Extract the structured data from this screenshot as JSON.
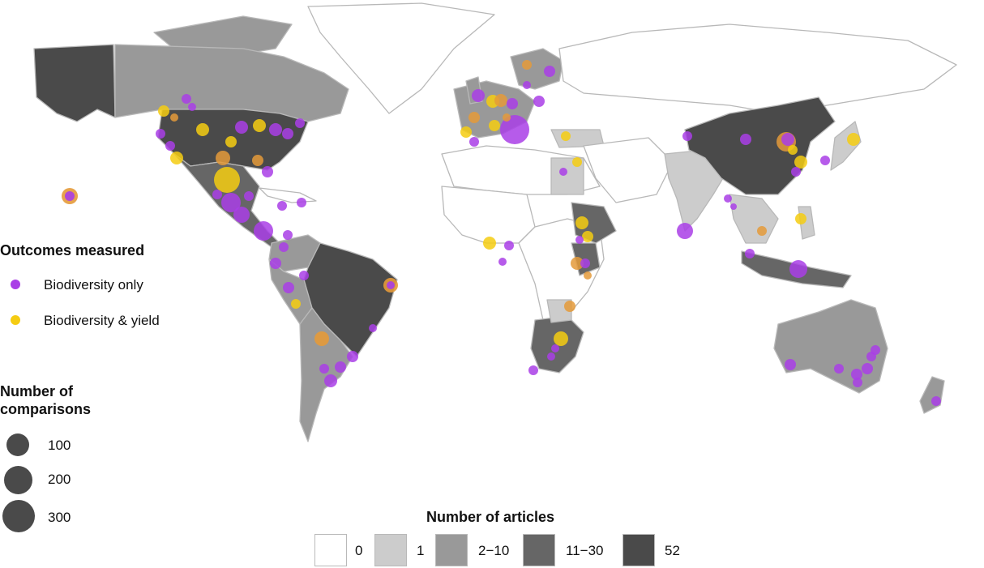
{
  "legend": {
    "outcomes_title": "Outcomes measured",
    "outcomes": [
      {
        "label": "Biodiversity only",
        "color": "#a93ee6"
      },
      {
        "label": "Biodiversity & yield",
        "color": "#f5cc12"
      }
    ],
    "overlap_color": "#e49a3a",
    "size_title_line1": "Number of",
    "size_title_line2": "comparisons",
    "sizes": [
      {
        "label": "100"
      },
      {
        "label": "200"
      },
      {
        "label": "300"
      }
    ],
    "articles_title": "Number of articles",
    "articles": [
      {
        "label": "0",
        "color": "#ffffff"
      },
      {
        "label": "1",
        "color": "#cccccc"
      },
      {
        "label": "2−10",
        "color": "#999999"
      },
      {
        "label": "11−30",
        "color": "#666666"
      },
      {
        "label": "52",
        "color": "#4a4a4a"
      }
    ]
  }
}
